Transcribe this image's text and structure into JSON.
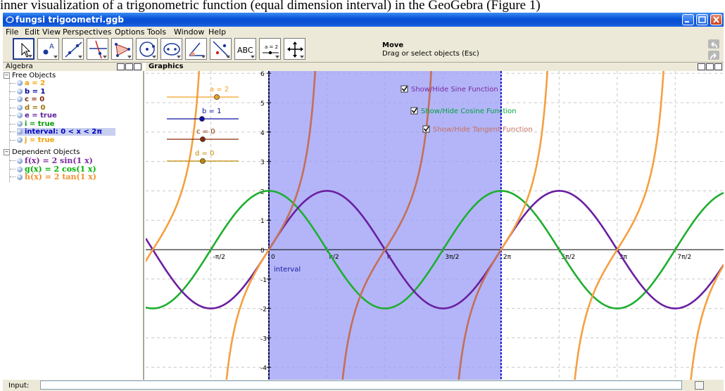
{
  "caption": "inner visualization of a trigonometric function (equal dimension interval) in the GeoGebra (Figure 1)",
  "window": {
    "title": "fungsi trigoometri.ggb"
  },
  "menu": [
    "File",
    "Edit",
    "View",
    "Perspectives",
    "Options",
    "Tools",
    "Window",
    "Help"
  ],
  "toolbar": {
    "tools": [
      "move-tool",
      "point-tool",
      "line-tool",
      "perpendicular-tool",
      "polygon-tool",
      "circle-tool",
      "conic-tool",
      "angle-tool",
      "reflect-tool",
      "text-tool",
      "slider-tool",
      "move-graphics-tool"
    ],
    "text_tool_label": "ABC",
    "slider_tool_label": "a = 2",
    "active_tool_title": "Move",
    "active_tool_desc": "Drag or select objects (Esc)"
  },
  "algebra": {
    "header": "Algebra",
    "free_label": "Free Objects",
    "dependent_label": "Dependent Objects",
    "free": [
      {
        "text": "a = 2",
        "color": "#f0a000"
      },
      {
        "text": "b = 1",
        "color": "#0000a0"
      },
      {
        "text": "c = 0",
        "color": "#7a2a00"
      },
      {
        "text": "d = 0",
        "color": "#a07000"
      },
      {
        "text": "e = true",
        "color": "#6020a0"
      },
      {
        "text": "i = true",
        "color": "#00a000"
      },
      {
        "text": "interval: 0 < x < 2π",
        "color": "#0000c0"
      },
      {
        "text": "j = true",
        "color": "#f0a000"
      }
    ],
    "dependent": [
      {
        "text": "f(x) = 2 sin(1 x)",
        "color": "#7a2aa0"
      },
      {
        "text": "g(x) = 2 cos(1 x)",
        "color": "#00b000"
      },
      {
        "text": "h(x) = 2 tan(1 x)",
        "color": "#f09030"
      }
    ]
  },
  "graphics": {
    "header": "Graphics",
    "sliders": [
      {
        "label": "a = 2",
        "value": 2,
        "color": "#f0a020"
      },
      {
        "label": "b = 1",
        "value": 1,
        "color": "#1010a0"
      },
      {
        "label": "c = 0",
        "value": 0,
        "color": "#8a2a00"
      },
      {
        "label": "d = 0",
        "value": 0,
        "color": "#c08a00"
      }
    ],
    "checkboxes": [
      {
        "label": "Show/Hide Sine Function",
        "color": "#7a2aa0",
        "checked": true
      },
      {
        "label": "Show/Hide Cosine Function",
        "color": "#00a040",
        "checked": true
      },
      {
        "label": "Show/Hide Tangent Function",
        "color": "#c87060",
        "checked": true
      }
    ],
    "interval_label": "interval",
    "x_ticks": [
      "-π/2",
      "0",
      "π/2",
      "π",
      "3π/2",
      "2π",
      "5π/2",
      "3π",
      "7π/2"
    ],
    "y_ticks": [
      "6",
      "5",
      "4",
      "3",
      "2",
      "1",
      "0",
      "-1",
      "-2",
      "-3",
      "-4"
    ],
    "colors": {
      "sine": "#6a1fa0",
      "cosine": "#1fae2f",
      "tangent": "#f5a040",
      "tangent_in_interval": "#c07060",
      "interval_fill": "#9a9cf5",
      "interval_edge": "#1010d0"
    },
    "functions": {
      "sine": {
        "amplitude": 2,
        "period_factor": 1
      },
      "cosine": {
        "amplitude": 2,
        "period_factor": 1
      },
      "tangent": {
        "amplitude": 2,
        "period_factor": 1
      }
    },
    "interval": {
      "from": 0,
      "to": 6.2832
    }
  },
  "input": {
    "label": "Input:"
  }
}
